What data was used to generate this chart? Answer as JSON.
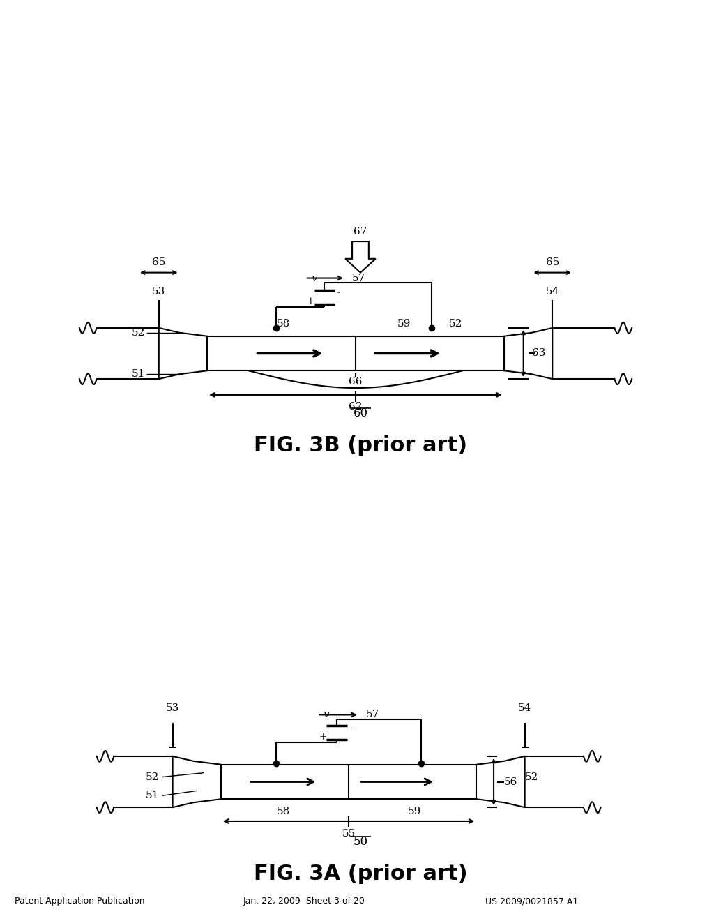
{
  "bg_color": "#ffffff",
  "header_left": "Patent Application Publication",
  "header_mid": "Jan. 22, 2009  Sheet 3 of 20",
  "header_right": "US 2009/0021857 A1",
  "fig3a_title": "FIG. 3A (prior art)",
  "fig3b_title": "FIG. 3B (prior art)",
  "label_50": "50",
  "label_55": "55",
  "label_58a": "58",
  "label_59a": "59",
  "label_51a": "51",
  "label_52a": "52",
  "label_56": "56",
  "label_53a": "53",
  "label_54a": "54",
  "label_57a": "57",
  "label_60": "60",
  "label_62": "62",
  "label_66": "66",
  "label_51b": "51",
  "label_52b": "52",
  "label_63": "63",
  "label_58b": "58",
  "label_59b": "59",
  "label_52c": "52",
  "label_53b": "53",
  "label_54b": "54",
  "label_57b": "57",
  "label_65a": "65",
  "label_65b": "65",
  "label_67": "67"
}
